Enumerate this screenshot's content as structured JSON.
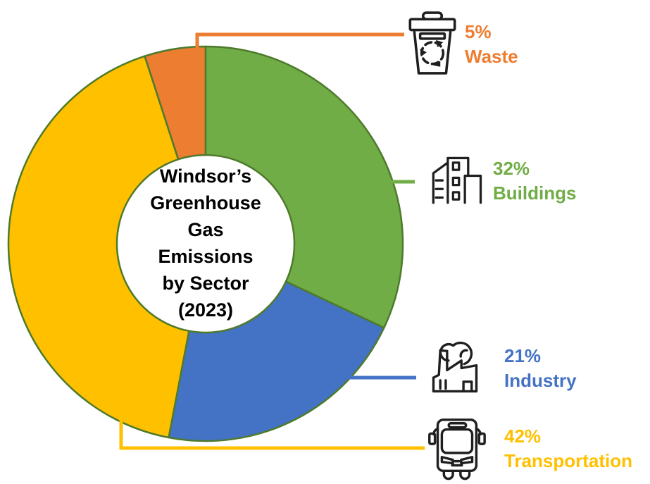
{
  "title": {
    "lines": [
      "Windsor’s",
      "Greenhouse",
      "Gas",
      "Emissions",
      "by Sector",
      "(2023)"
    ]
  },
  "chart_data": {
    "type": "pie",
    "subtype": "donut",
    "title": "Windsor’s Greenhouse Gas Emissions by Sector (2023)",
    "unit": "percent",
    "direction": "clockwise",
    "start_angle_deg": -108,
    "hole_ratio": 0.45,
    "outline_color": "#4E7A2B",
    "background": "#FFFFFF",
    "legend_position": "right",
    "segments": [
      {
        "label": "Waste",
        "value": 5,
        "pct_label": "5%",
        "color": "#ED7D31",
        "icon": "recycle-bin-icon"
      },
      {
        "label": "Buildings",
        "value": 32,
        "pct_label": "32%",
        "color": "#70AD47",
        "icon": "buildings-icon"
      },
      {
        "label": "Industry",
        "value": 21,
        "pct_label": "21%",
        "color": "#4472C4",
        "icon": "factory-icon"
      },
      {
        "label": "Transportation",
        "value": 42,
        "pct_label": "42%",
        "color": "#FFC000",
        "icon": "bus-icon"
      }
    ]
  }
}
